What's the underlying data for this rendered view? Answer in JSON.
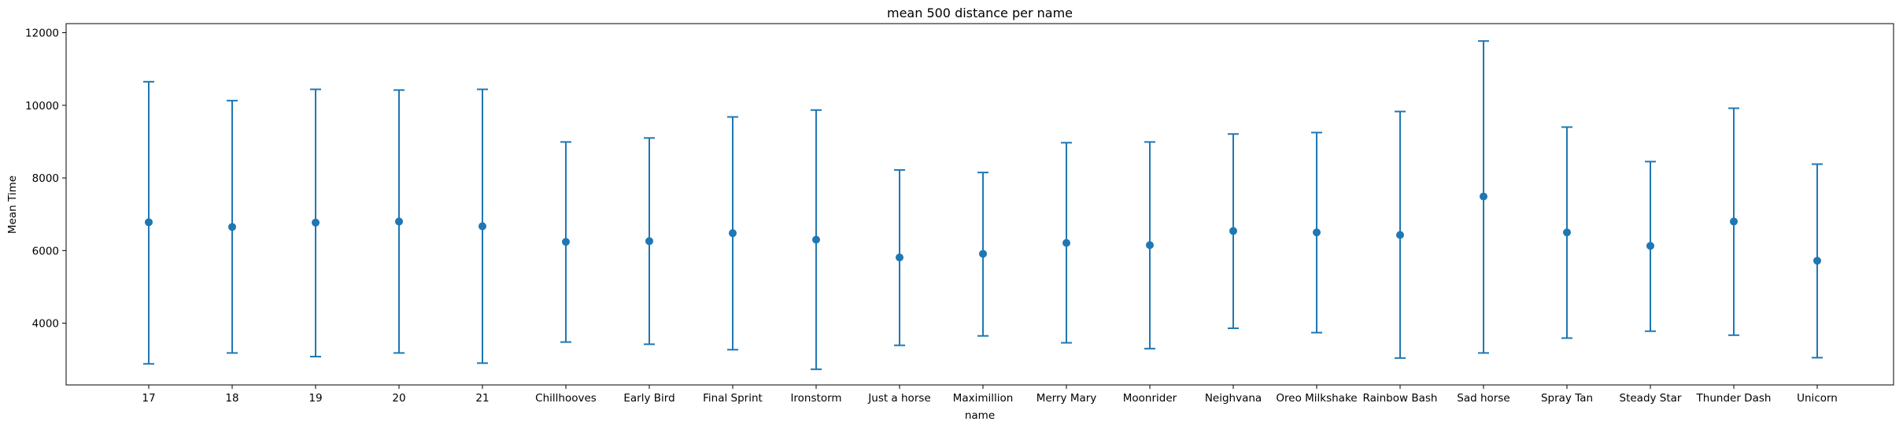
{
  "chart_data": {
    "type": "scatter",
    "title": "mean 500 distance per name",
    "xlabel": "name",
    "ylabel": "Mean Time",
    "ylim": [
      2300,
      12250
    ],
    "yticks": [
      4000,
      6000,
      8000,
      10000,
      12000
    ],
    "grid": false,
    "color": "#1f77b4",
    "categories": [
      "17",
      "18",
      "19",
      "20",
      "21",
      "Chillhooves",
      "Early Bird",
      "Final Sprint",
      "Ironstorm",
      "Just a horse",
      "Maximillion",
      "Merry Mary",
      "Moonrider",
      "Neighvana",
      "Oreo Milkshake",
      "Rainbow Bash",
      "Sad horse",
      "Spray Tan",
      "Steady Star",
      "Thunder Dash",
      "Unicorn"
    ],
    "series": [
      {
        "values": [
          6780,
          6650,
          6770,
          6800,
          6670,
          6240,
          6260,
          6480,
          6300,
          5810,
          5910,
          6210,
          6150,
          6540,
          6500,
          6430,
          7490,
          6500,
          6130,
          6800,
          5720
        ],
        "error_low": [
          2880,
          3180,
          3080,
          3180,
          2900,
          3480,
          3420,
          3270,
          2730,
          3390,
          3650,
          3460,
          3300,
          3860,
          3740,
          3040,
          3180,
          3590,
          3780,
          3670,
          3050
        ],
        "error_high": [
          10650,
          10130,
          10440,
          10420,
          10440,
          8990,
          9100,
          9680,
          9870,
          8220,
          8150,
          8970,
          8990,
          9210,
          9250,
          9830,
          11770,
          9400,
          8450,
          9920,
          8380
        ]
      }
    ]
  }
}
